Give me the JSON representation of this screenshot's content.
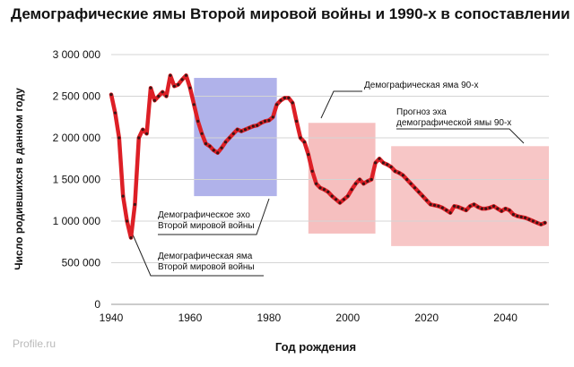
{
  "watermark": "Profile.ru",
  "chart_data": {
    "type": "line",
    "title": "Демографические ямы Второй мировой войны и 1990-х в сопоставлении",
    "xlabel": "Год рождения",
    "ylabel": "Число родившихся в данном году",
    "xlim": [
      1940,
      2051
    ],
    "ylim": [
      0,
      3000000
    ],
    "x_ticks": [
      1940,
      1960,
      1980,
      2000,
      2020,
      2040
    ],
    "y_ticks": [
      {
        "value": 0,
        "label": "0"
      },
      {
        "value": 500000,
        "label": "500 000"
      },
      {
        "value": 1000000,
        "label": "1 000 000"
      },
      {
        "value": 1500000,
        "label": "1 500 000"
      },
      {
        "value": 2000000,
        "label": "2 000 000"
      },
      {
        "value": 2500000,
        "label": "2 500 000"
      },
      {
        "value": 3000000,
        "label": "3 000 000"
      }
    ],
    "line_color": "#dd1f26",
    "marker_color": "#3a1515",
    "series": [
      {
        "x": [
          1940,
          1941,
          1942,
          1943,
          1944,
          1945,
          1946,
          1947,
          1948,
          1949,
          1950,
          1951,
          1952,
          1953,
          1954,
          1955,
          1956,
          1957,
          1958,
          1959,
          1960,
          1961,
          1962,
          1963,
          1964,
          1965,
          1966,
          1967,
          1968,
          1969,
          1970,
          1971,
          1972,
          1973,
          1974,
          1975,
          1976,
          1977,
          1978,
          1979,
          1980,
          1981,
          1982,
          1983,
          1984,
          1985,
          1986,
          1987,
          1988,
          1989,
          1990,
          1991,
          1992,
          1993,
          1994,
          1995,
          1996,
          1997,
          1998,
          1999,
          2000,
          2001,
          2002,
          2003,
          2004,
          2005,
          2006,
          2007,
          2008,
          2009,
          2010,
          2011,
          2012,
          2013,
          2014,
          2015,
          2016,
          2017,
          2018,
          2019,
          2020,
          2021,
          2022,
          2023,
          2024,
          2025,
          2026,
          2027,
          2028,
          2029,
          2030,
          2031,
          2032,
          2033,
          2034,
          2035,
          2036,
          2037,
          2038,
          2039,
          2040,
          2041,
          2042,
          2043,
          2044,
          2045,
          2046,
          2047,
          2048,
          2049,
          2050
        ],
        "y": [
          2520000,
          2300000,
          2000000,
          1300000,
          1000000,
          800000,
          1200000,
          2000000,
          2100000,
          2050000,
          2600000,
          2450000,
          2500000,
          2550000,
          2500000,
          2750000,
          2620000,
          2640000,
          2700000,
          2750000,
          2600000,
          2400000,
          2200000,
          2050000,
          1930000,
          1900000,
          1850000,
          1820000,
          1880000,
          1950000,
          2000000,
          2050000,
          2100000,
          2080000,
          2100000,
          2120000,
          2140000,
          2150000,
          2180000,
          2200000,
          2210000,
          2250000,
          2400000,
          2450000,
          2480000,
          2480000,
          2420000,
          2200000,
          2000000,
          1950000,
          1800000,
          1600000,
          1450000,
          1400000,
          1380000,
          1350000,
          1300000,
          1260000,
          1220000,
          1260000,
          1300000,
          1380000,
          1450000,
          1500000,
          1450000,
          1480000,
          1500000,
          1700000,
          1750000,
          1700000,
          1680000,
          1650000,
          1600000,
          1580000,
          1550000,
          1500000,
          1450000,
          1400000,
          1350000,
          1300000,
          1250000,
          1200000,
          1190000,
          1180000,
          1160000,
          1130000,
          1100000,
          1180000,
          1170000,
          1150000,
          1130000,
          1180000,
          1200000,
          1170000,
          1150000,
          1150000,
          1160000,
          1180000,
          1150000,
          1120000,
          1150000,
          1130000,
          1080000,
          1060000,
          1050000,
          1040000,
          1020000,
          1000000,
          980000,
          960000,
          980000
        ]
      }
    ],
    "annotations": [
      {
        "label": "Демографическое эхо\nВторой мировой войны",
        "x0": 1961,
        "x1": 1982,
        "y0": 1300000,
        "y1": 2720000,
        "color": "#6f72d9",
        "opacity": 0.55
      },
      {
        "label": "Демографическая яма 90-х",
        "x0": 1990,
        "x1": 2007,
        "y0": 850000,
        "y1": 2180000,
        "color": "#ee8080",
        "opacity": 0.5
      },
      {
        "label": "Прогноз эха\nдемографической ямы 90-х",
        "x0": 2011,
        "x1": 2051,
        "y0": 700000,
        "y1": 1900000,
        "color": "#ee8080",
        "opacity": 0.45
      },
      {
        "label": "Демографическая яма\nВторой мировой войны"
      }
    ]
  }
}
